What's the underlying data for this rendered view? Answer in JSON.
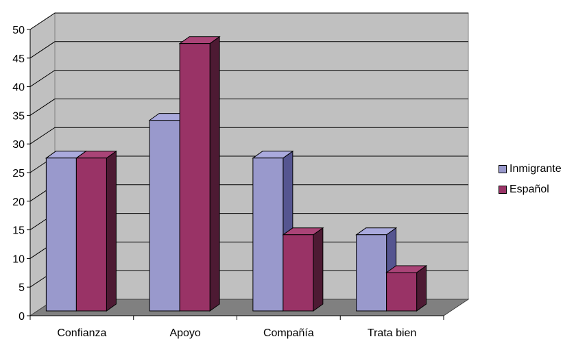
{
  "chart_data": {
    "type": "bar",
    "title": "",
    "xlabel": "",
    "ylabel": "",
    "categories": [
      "Confianza",
      "Apoyo",
      "Compañía",
      "Trata bien"
    ],
    "series": [
      {
        "name": "Inmigrante",
        "values": [
          26.7,
          33.3,
          26.7,
          13.3
        ],
        "color": "#9999CC",
        "side": "#555590",
        "top": "#AAAADD"
      },
      {
        "name": "Español",
        "values": [
          26.7,
          46.7,
          13.3,
          6.7
        ],
        "color": "#993366",
        "side": "#4D1A33",
        "top": "#AA4477"
      }
    ],
    "ylim": [
      0,
      50
    ],
    "yticks": [
      "0",
      "5",
      "10",
      "15",
      "20",
      "25",
      "30",
      "35",
      "40",
      "45",
      "50"
    ],
    "grid": true,
    "legend": "right"
  }
}
